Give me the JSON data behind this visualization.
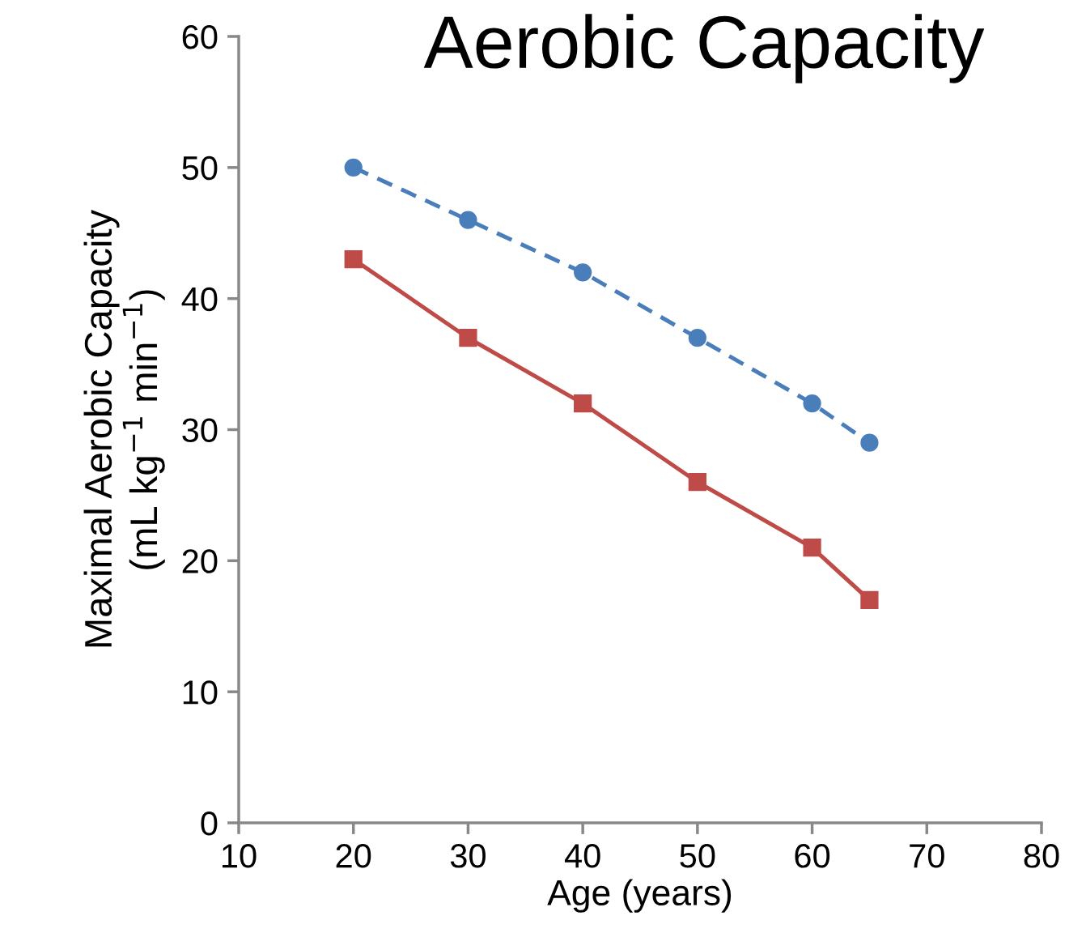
{
  "chart_data": {
    "type": "line",
    "title": "Aerobic Capacity",
    "xlabel": "Age (years)",
    "ylabel": "Maximal Aerobic Capacity\n(mL kg$^{−1}$ min$^{−1}$)",
    "x": [
      20,
      30,
      40,
      50,
      60,
      65
    ],
    "series": [
      {
        "color": "#4a7ebb",
        "values": [
          50,
          46,
          42,
          37,
          32,
          29
        ],
        "marker": "circle",
        "line_style": "dashed"
      },
      {
        "color": "#be4b48",
        "values": [
          43,
          37,
          32,
          26,
          21,
          17
        ],
        "marker": "square",
        "line_style": "solid"
      }
    ],
    "xlim": [
      10,
      80
    ],
    "xticks": [
      10,
      20,
      30,
      40,
      50,
      60,
      70,
      80
    ],
    "ylim": [
      0,
      60
    ],
    "yticks": [
      0,
      10,
      20,
      30,
      40,
      50,
      60
    ],
    "grid": false,
    "legend": false
  }
}
